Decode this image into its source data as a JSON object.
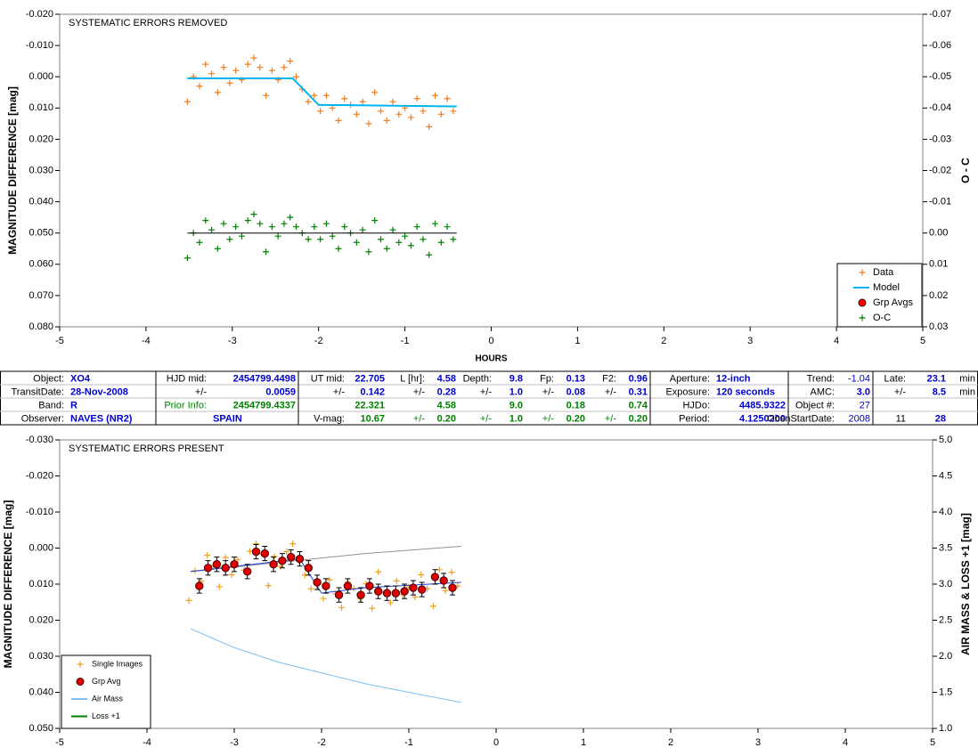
{
  "chart_data": [
    {
      "type": "scatter",
      "title": "SYSTEMATIC ERRORS REMOVED",
      "x_label": "HOURS",
      "y_label": "MAGNITUDE DIFFERENCE [mag]",
      "y2_label": "O - C",
      "legend": "lower right",
      "xlim": [
        -5,
        5
      ],
      "xticks": [
        -5,
        -4,
        -3,
        -2,
        -1,
        0,
        1,
        2,
        3,
        4,
        5
      ],
      "ylim": [
        0.08,
        -0.02
      ],
      "yticks": [
        {
          "value": -0.02,
          "label": "-0.020"
        },
        {
          "value": -0.01,
          "label": "-0.010"
        },
        {
          "value": 0,
          "label": "0.000"
        },
        {
          "value": 0.01,
          "label": "0.010"
        },
        {
          "value": 0.02,
          "label": "0.020"
        },
        {
          "value": 0.03,
          "label": "0.030"
        },
        {
          "value": 0.04,
          "label": "0.040"
        },
        {
          "value": 0.05,
          "label": "0.050"
        },
        {
          "value": 0.06,
          "label": "0.060"
        },
        {
          "value": 0.07,
          "label": "0.070"
        },
        {
          "value": 0.08,
          "label": "0.080"
        }
      ],
      "y2lim": [
        0.03,
        -0.07
      ],
      "y2ticks": [
        -0.07,
        -0.06,
        -0.05,
        -0.04,
        -0.03,
        -0.02,
        -0.01,
        {
          "value": 0,
          "label": "0.00"
        },
        0.01,
        0.02,
        0.03
      ],
      "series": [
        {
          "name": "Data",
          "type": "scatter",
          "marker": "plus",
          "color": "#f07d1e",
          "x": [
            -3.52,
            -3.45,
            -3.38,
            -3.31,
            -3.24,
            -3.17,
            -3.1,
            -3.03,
            -2.96,
            -2.89,
            -2.82,
            -2.75,
            -2.68,
            -2.61,
            -2.54,
            -2.47,
            -2.4,
            -2.33,
            -2.26,
            -2.19,
            -2.12,
            -2.05,
            -1.98,
            -1.91,
            -1.84,
            -1.77,
            -1.7,
            -1.63,
            -1.56,
            -1.49,
            -1.42,
            -1.35,
            -1.28,
            -1.21,
            -1.14,
            -1.07,
            -1.0,
            -0.93,
            -0.86,
            -0.79,
            -0.72,
            -0.65,
            -0.58,
            -0.51,
            -0.44
          ],
          "values": [
            0.008,
            0.0,
            0.003,
            -0.004,
            -0.001,
            0.005,
            -0.003,
            0.002,
            -0.002,
            0.001,
            -0.004,
            -0.006,
            -0.003,
            0.006,
            -0.002,
            0.001,
            -0.003,
            -0.005,
            0.0,
            0.004,
            0.008,
            0.006,
            0.011,
            0.006,
            0.01,
            0.014,
            0.007,
            0.009,
            0.012,
            0.008,
            0.015,
            0.005,
            0.011,
            0.014,
            0.008,
            0.012,
            0.01,
            0.013,
            0.007,
            0.011,
            0.016,
            0.006,
            0.012,
            0.007,
            0.011
          ]
        },
        {
          "name": "Model",
          "type": "line",
          "color": "#00b4f0",
          "x": [
            -3.52,
            -2.3,
            -2.0,
            -0.4
          ],
          "values": [
            0.0005,
            0.0005,
            0.009,
            0.0095
          ]
        },
        {
          "name": "Grp Avgs",
          "type": "scatter",
          "marker": "circle",
          "color": "#ff0000",
          "x": [],
          "values": []
        },
        {
          "name": "O-C",
          "type": "scatter",
          "marker": "plus",
          "color": "#008000",
          "axis": "y2",
          "x": [
            -3.52,
            -3.45,
            -3.38,
            -3.31,
            -3.24,
            -3.17,
            -3.1,
            -3.03,
            -2.96,
            -2.89,
            -2.82,
            -2.75,
            -2.68,
            -2.61,
            -2.54,
            -2.47,
            -2.4,
            -2.33,
            -2.26,
            -2.19,
            -2.12,
            -2.05,
            -1.98,
            -1.91,
            -1.84,
            -1.77,
            -1.7,
            -1.63,
            -1.56,
            -1.49,
            -1.42,
            -1.35,
            -1.28,
            -1.21,
            -1.14,
            -1.07,
            -1.0,
            -0.93,
            -0.86,
            -0.79,
            -0.72,
            -0.65,
            -0.58,
            -0.51,
            -0.44
          ],
          "values": [
            0.008,
            0.0,
            0.003,
            -0.004,
            -0.001,
            0.005,
            -0.003,
            0.002,
            -0.002,
            0.001,
            -0.004,
            -0.006,
            -0.003,
            0.006,
            -0.002,
            0.001,
            -0.003,
            -0.005,
            -0.002,
            0.0,
            0.002,
            -0.002,
            0.002,
            -0.003,
            0.001,
            0.005,
            -0.002,
            0.0,
            0.003,
            -0.001,
            0.006,
            -0.004,
            0.002,
            0.005,
            -0.001,
            0.003,
            0.001,
            0.004,
            -0.002,
            0.002,
            0.007,
            -0.003,
            0.003,
            -0.002,
            0.002
          ]
        },
        {
          "type": "line",
          "color": "#000000",
          "axis": "y2",
          "x": [
            -3.52,
            -0.4
          ],
          "values": [
            0,
            0
          ]
        }
      ]
    },
    {
      "type": "scatter",
      "title": "SYSTEMATIC ERRORS PRESENT",
      "y_label": "MAGNITUDE DIFFERENCE [mag]",
      "y2_label": "AIR MASS & LOSS +1 [mag]",
      "legend": "lower left",
      "xlim": [
        -5,
        5
      ],
      "xticks": [
        -5,
        -4,
        -3,
        -2,
        -1,
        0,
        1,
        2,
        3,
        4,
        5
      ],
      "ylim": [
        0.05,
        -0.03
      ],
      "yticks": [
        {
          "value": -0.03,
          "label": "-0.030"
        },
        {
          "value": -0.02,
          "label": "-0.020"
        },
        {
          "value": -0.01,
          "label": "-0.010"
        },
        {
          "value": 0,
          "label": "0.000"
        },
        {
          "value": 0.01,
          "label": "0.010"
        },
        {
          "value": 0.02,
          "label": "0.020"
        },
        {
          "value": 0.03,
          "label": "0.030"
        },
        {
          "value": 0.04,
          "label": "0.040"
        },
        {
          "value": 0.05,
          "label": "0.050"
        }
      ],
      "y2lim": [
        1,
        5
      ],
      "y2ticks": [
        {
          "value": 5,
          "label": "5.0"
        },
        4.5,
        {
          "value": 4,
          "label": "4.0"
        },
        3.5,
        {
          "value": 3,
          "label": "3.0"
        },
        2.5,
        {
          "value": 2,
          "label": "2.0"
        },
        1.5,
        {
          "value": 1,
          "label": "1.0"
        }
      ],
      "series": [
        {
          "name": "Single Images",
          "type": "scatter",
          "marker": "plus",
          "color": "#f0a020",
          "x": [
            -3.52,
            -3.45,
            -3.38,
            -3.31,
            -3.24,
            -3.17,
            -3.1,
            -3.03,
            -2.96,
            -2.89,
            -2.82,
            -2.75,
            -2.68,
            -2.61,
            -2.54,
            -2.47,
            -2.4,
            -2.33,
            -2.26,
            -2.19,
            -2.12,
            -2.05,
            -1.98,
            -1.91,
            -1.84,
            -1.77,
            -1.7,
            -1.63,
            -1.56,
            -1.49,
            -1.42,
            -1.35,
            -1.28,
            -1.21,
            -1.14,
            -1.07,
            -1.0,
            -0.93,
            -0.86,
            -0.79,
            -0.72,
            -0.65,
            -0.58,
            -0.51,
            -0.44
          ],
          "values": [
            0.0145,
            0.0063,
            0.0092,
            0.002,
            0.0049,
            0.0107,
            0.0026,
            0.0074,
            0.0032,
            0.0061,
            0.0009,
            -0.0012,
            0.0016,
            0.0104,
            0.0023,
            0.0051,
            0.001,
            -0.0012,
            0.0036,
            0.0075,
            0.0113,
            0.0092,
            0.014,
            0.0088,
            0.0127,
            0.0165,
            0.0094,
            0.0112,
            0.014,
            0.0099,
            0.0167,
            0.0066,
            0.0124,
            0.0152,
            0.0091,
            0.0129,
            0.0108,
            0.0136,
            0.0074,
            0.0113,
            0.0161,
            0.006,
            0.0118,
            0.0067,
            0.0105
          ]
        },
        {
          "type": "line",
          "color": "#909090",
          "x": [
            -3.5,
            -2.5,
            -1.5,
            -0.4
          ],
          "values": [
            0.0065,
            0.004,
            0.0015,
            -0.0005
          ]
        },
        {
          "type": "line",
          "color": "#1f3fd8",
          "x": [
            -3.5,
            -2.25,
            -2.0,
            -1.5,
            -0.4
          ],
          "values": [
            0.0065,
            0.003,
            0.0125,
            0.011,
            0.0095
          ]
        },
        {
          "name": "Grp Avg",
          "type": "scatter",
          "marker": "circle",
          "color": "#e00000",
          "x": [
            -3.4,
            -3.3,
            -3.2,
            -3.1,
            -3.0,
            -2.85,
            -2.75,
            -2.65,
            -2.55,
            -2.45,
            -2.35,
            -2.25,
            -2.15,
            -2.05,
            -1.95,
            -1.8,
            -1.7,
            -1.55,
            -1.45,
            -1.35,
            -1.25,
            -1.15,
            -1.05,
            -0.95,
            -0.85,
            -0.7,
            -0.6,
            -0.5
          ],
          "values": [
            0.0105,
            0.0055,
            0.0045,
            0.0055,
            0.0045,
            0.0065,
            0.001,
            0.0015,
            0.0045,
            0.0035,
            0.0025,
            0.003,
            0.0055,
            0.0095,
            0.0105,
            0.013,
            0.0105,
            0.013,
            0.0105,
            0.012,
            0.0125,
            0.0125,
            0.012,
            0.011,
            0.0115,
            0.008,
            0.009,
            0.011
          ],
          "errors": [
            0.002,
            0.002,
            0.002,
            0.002,
            0.002,
            0.002,
            0.002,
            0.002,
            0.002,
            0.002,
            0.002,
            0.002,
            0.002,
            0.002,
            0.002,
            0.002,
            0.002,
            0.002,
            0.002,
            0.002,
            0.002,
            0.002,
            0.002,
            0.002,
            0.002,
            0.002,
            0.002,
            0.002
          ]
        },
        {
          "name": "Air Mass",
          "type": "line",
          "color": "#7fbff0",
          "axis": "y2",
          "x": [
            -3.5,
            -3.0,
            -2.5,
            -2.0,
            -1.5,
            -1.0,
            -0.4
          ],
          "values": [
            2.38,
            2.12,
            1.92,
            1.77,
            1.62,
            1.5,
            1.36
          ]
        },
        {
          "name": "Loss +1",
          "type": "line",
          "color": "#008000",
          "axis": "y2",
          "x": [],
          "values": []
        }
      ]
    }
  ],
  "table": {
    "rows": [
      [
        "Object:",
        "XO4",
        "HJD mid:",
        "2454799.4498",
        "UT mid:",
        "22.705",
        "L [hr]:",
        "4.58",
        "Depth:",
        "9.8",
        "Fp:",
        "0.13",
        "F2:",
        "0.96",
        "Aperture:",
        "12-inch",
        "Trend:",
        "-1.04",
        "Late:",
        "23.1",
        "min"
      ],
      [
        "TransitDate:",
        "28-Nov-2008",
        "+/-",
        "0.0059",
        "+/-",
        "0.142",
        "+/-",
        "0.28",
        "+/-",
        "1.0",
        "+/-",
        "0.08",
        "+/-",
        "0.31",
        "Exposure:",
        "120 seconds",
        "AMC:",
        "3.0",
        "+/-",
        "8.5",
        "min"
      ],
      [
        "Band:",
        "R",
        "Prior Info:",
        "2454799.4337",
        null,
        "22.321",
        null,
        "4.58",
        null,
        "9.0",
        null,
        "0.18",
        null,
        "0.74",
        "HJDo:",
        "4485.9322",
        "Object #:",
        "27",
        null,
        null,
        null
      ],
      [
        "Observer:",
        "NAVES (NR2)",
        null,
        "SPAIN",
        "V-mag:",
        "10.67",
        "+/-",
        "0.20",
        "+/-",
        "1.0",
        "+/-",
        "0.20",
        "+/-",
        "0.20",
        "Period:",
        "4.1250200",
        "ObsnStartDate:",
        "2008",
        "11",
        "28",
        null
      ]
    ]
  }
}
